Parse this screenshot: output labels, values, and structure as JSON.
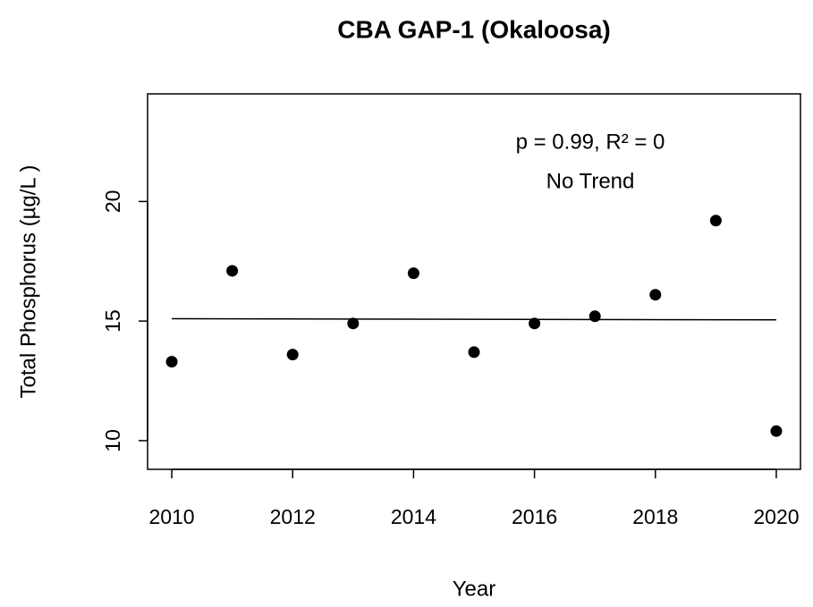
{
  "chart_data": {
    "type": "scatter",
    "title": "CBA GAP-1 (Okaloosa)",
    "x_label": "Year",
    "y_label": "Total Phosphorus (µg/L )",
    "annotations": [
      "p = 0.99, R² = 0",
      "No Trend"
    ],
    "series": [
      {
        "name": "Total Phosphorus",
        "color": "#000000",
        "x": [
          2010,
          2011,
          2012,
          2013,
          2014,
          2015,
          2016,
          2017,
          2018,
          2019,
          2020
        ],
        "values": [
          13.3,
          17.1,
          13.6,
          14.9,
          17.0,
          13.7,
          14.9,
          15.2,
          16.1,
          19.2,
          10.4
        ]
      }
    ],
    "trend": {
      "color": "#000000",
      "x": [
        2010,
        2020
      ],
      "values": [
        15.1,
        15.05
      ]
    },
    "xlim": [
      2009.6,
      2020.4
    ],
    "xticks": [
      2010,
      2012,
      2014,
      2016,
      2018,
      2020
    ],
    "ylim": [
      8.8,
      24.5
    ],
    "yticks": [
      10,
      15,
      20
    ],
    "grid": false
  }
}
